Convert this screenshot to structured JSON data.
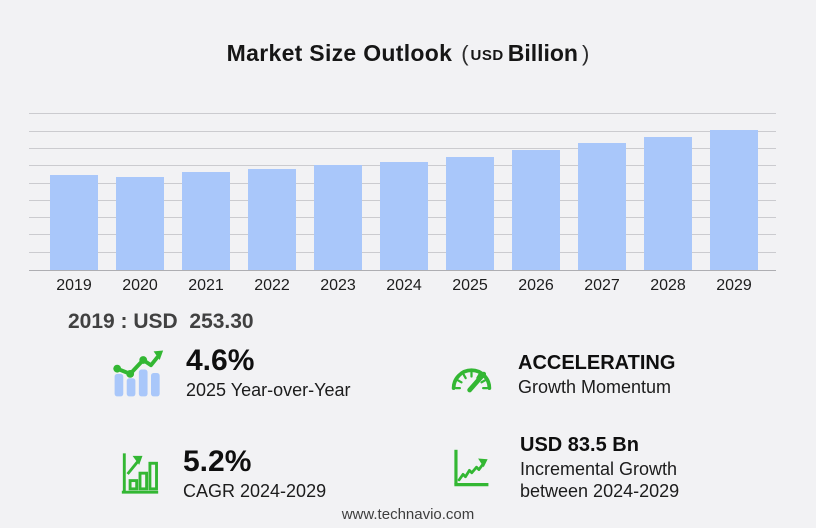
{
  "title": {
    "main": "Market Size Outlook",
    "paren_open": "(",
    "currency": "USD",
    "unit": "Billion",
    "paren_close": ")"
  },
  "chart_data": {
    "type": "bar",
    "title": "Market Size Outlook (USD Billion)",
    "categories": [
      "2019",
      "2020",
      "2021",
      "2022",
      "2023",
      "2024",
      "2025",
      "2026",
      "2027",
      "2028",
      "2029"
    ],
    "values": [
      253.3,
      248.0,
      261.0,
      270.5,
      281.5,
      289.6,
      302.9,
      320.5,
      338.5,
      356.0,
      373.1
    ],
    "xlabel": "",
    "ylabel": "USD Billion",
    "ylim": [
      0,
      446
    ],
    "grid": true,
    "gridline_count": 9,
    "legend": false
  },
  "base_year_note": {
    "text": "2019 : USD  253.30"
  },
  "stats": {
    "yoy": {
      "icon": "bar-chart-trend-icon",
      "value": "4.6%",
      "label": "2025 Year-over-Year"
    },
    "momentum": {
      "icon": "gauge-icon",
      "value": "ACCELERATING",
      "label": "Growth Momentum"
    },
    "cagr": {
      "icon": "bar-chart-growth-icon",
      "value": "5.2%",
      "label": "CAGR 2024-2029"
    },
    "incremental": {
      "icon": "line-chart-growth-icon",
      "value": "USD 83.5 Bn",
      "label": "Incremental Growth between 2024-2029"
    }
  },
  "footer": {
    "website": "www.technavio.com"
  },
  "colors": {
    "background": "#f2f2f4",
    "bar_blue": "#a9c7fa",
    "accent_green": "#33b733",
    "gridline": "#cbcbcf",
    "axis_line": "#aeaeb2"
  }
}
